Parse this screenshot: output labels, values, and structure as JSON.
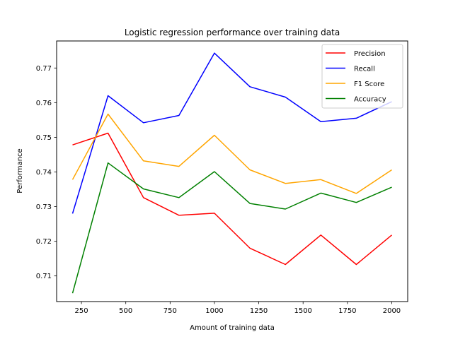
{
  "chart_data": {
    "type": "line",
    "title": "Logistic regression performance over training data",
    "xlabel": "Amount of training data",
    "ylabel": "Performance",
    "x": [
      200,
      400,
      600,
      800,
      1000,
      1200,
      1400,
      1600,
      1800,
      2000
    ],
    "xlim": [
      110,
      2090
    ],
    "ylim": [
      0.7026,
      0.7778
    ],
    "xticks": [
      250,
      500,
      750,
      1000,
      1250,
      1500,
      1750,
      2000
    ],
    "yticks": [
      0.71,
      0.72,
      0.73,
      0.74,
      0.75,
      0.76,
      0.77
    ],
    "xtick_labels": [
      "250",
      "500",
      "750",
      "1000",
      "1250",
      "1500",
      "1750",
      "2000"
    ],
    "ytick_labels": [
      "0.71",
      "0.72",
      "0.73",
      "0.74",
      "0.75",
      "0.76",
      "0.77"
    ],
    "grid": false,
    "legend_position": "top-right",
    "series": [
      {
        "name": "Precision",
        "color": "#ff0000",
        "values": [
          0.7478,
          0.7512,
          0.7326,
          0.7275,
          0.7281,
          0.718,
          0.7133,
          0.7218,
          0.7133,
          0.7218
        ]
      },
      {
        "name": "Recall",
        "color": "#0000ff",
        "values": [
          0.728,
          0.762,
          0.7542,
          0.7563,
          0.7743,
          0.7646,
          0.7616,
          0.7545,
          0.7555,
          0.7603
        ]
      },
      {
        "name": "F1 Score",
        "color": "#ffa500",
        "values": [
          0.7378,
          0.7567,
          0.7432,
          0.7416,
          0.7506,
          0.7406,
          0.7367,
          0.7378,
          0.7338,
          0.7406
        ]
      },
      {
        "name": "Accuracy",
        "color": "#008000",
        "values": [
          0.705,
          0.7426,
          0.7351,
          0.7326,
          0.7401,
          0.7309,
          0.7293,
          0.7339,
          0.7312,
          0.7356
        ]
      }
    ]
  }
}
